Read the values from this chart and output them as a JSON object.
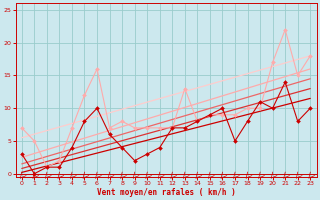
{
  "bg_color": "#cce8ee",
  "grid_color": "#99cccc",
  "xlabel": "Vent moyen/en rafales ( km/h )",
  "xlabel_color": "#cc0000",
  "tick_color": "#cc0000",
  "spine_color": "#cc0000",
  "xlim": [
    -0.5,
    23.5
  ],
  "ylim": [
    -0.5,
    26
  ],
  "yticks": [
    0,
    5,
    10,
    15,
    20,
    25
  ],
  "xticks": [
    0,
    1,
    2,
    3,
    4,
    5,
    6,
    7,
    8,
    9,
    10,
    11,
    12,
    13,
    14,
    15,
    16,
    17,
    18,
    19,
    20,
    21,
    22,
    23
  ],
  "series_main_dark": {
    "x": [
      0,
      1,
      2,
      3,
      4,
      5,
      6,
      7,
      8,
      9,
      10,
      11,
      12,
      13,
      14,
      15,
      16,
      17,
      18,
      19,
      20,
      21,
      22,
      23
    ],
    "y": [
      3,
      0,
      1,
      1,
      4,
      8,
      10,
      6,
      4,
      2,
      3,
      4,
      7,
      7,
      8,
      9,
      10,
      5,
      8,
      11,
      10,
      14,
      8,
      10
    ],
    "color": "#cc0000",
    "lw": 0.8,
    "marker": "D",
    "ms": 2.0
  },
  "series_main_light": {
    "x": [
      0,
      1,
      2,
      3,
      4,
      5,
      6,
      7,
      8,
      9,
      10,
      11,
      12,
      13,
      14,
      15,
      16,
      17,
      18,
      19,
      20,
      21,
      22,
      23
    ],
    "y": [
      7,
      5,
      1,
      2,
      7,
      12,
      16,
      7,
      8,
      7,
      7,
      7,
      7,
      13,
      8,
      9,
      9,
      9,
      10,
      10,
      17,
      22,
      15,
      18
    ],
    "color": "#ffaaaa",
    "lw": 0.8,
    "marker": "D",
    "ms": 2.0
  },
  "trend_lines": [
    {
      "x": [
        0,
        23
      ],
      "y": [
        0.2,
        11.5
      ],
      "color": "#cc0000",
      "lw": 0.9
    },
    {
      "x": [
        0,
        23
      ],
      "y": [
        0.8,
        13.0
      ],
      "color": "#dd3333",
      "lw": 0.9
    },
    {
      "x": [
        0,
        23
      ],
      "y": [
        1.5,
        14.5
      ],
      "color": "#ee6666",
      "lw": 0.9
    },
    {
      "x": [
        0,
        23
      ],
      "y": [
        2.5,
        16.0
      ],
      "color": "#ffaaaa",
      "lw": 0.9
    },
    {
      "x": [
        0,
        23
      ],
      "y": [
        5.5,
        18.0
      ],
      "color": "#ffcccc",
      "lw": 0.9
    }
  ],
  "arrow_color": "#cc0000",
  "hline_y": 0,
  "hline_color": "#cc0000"
}
